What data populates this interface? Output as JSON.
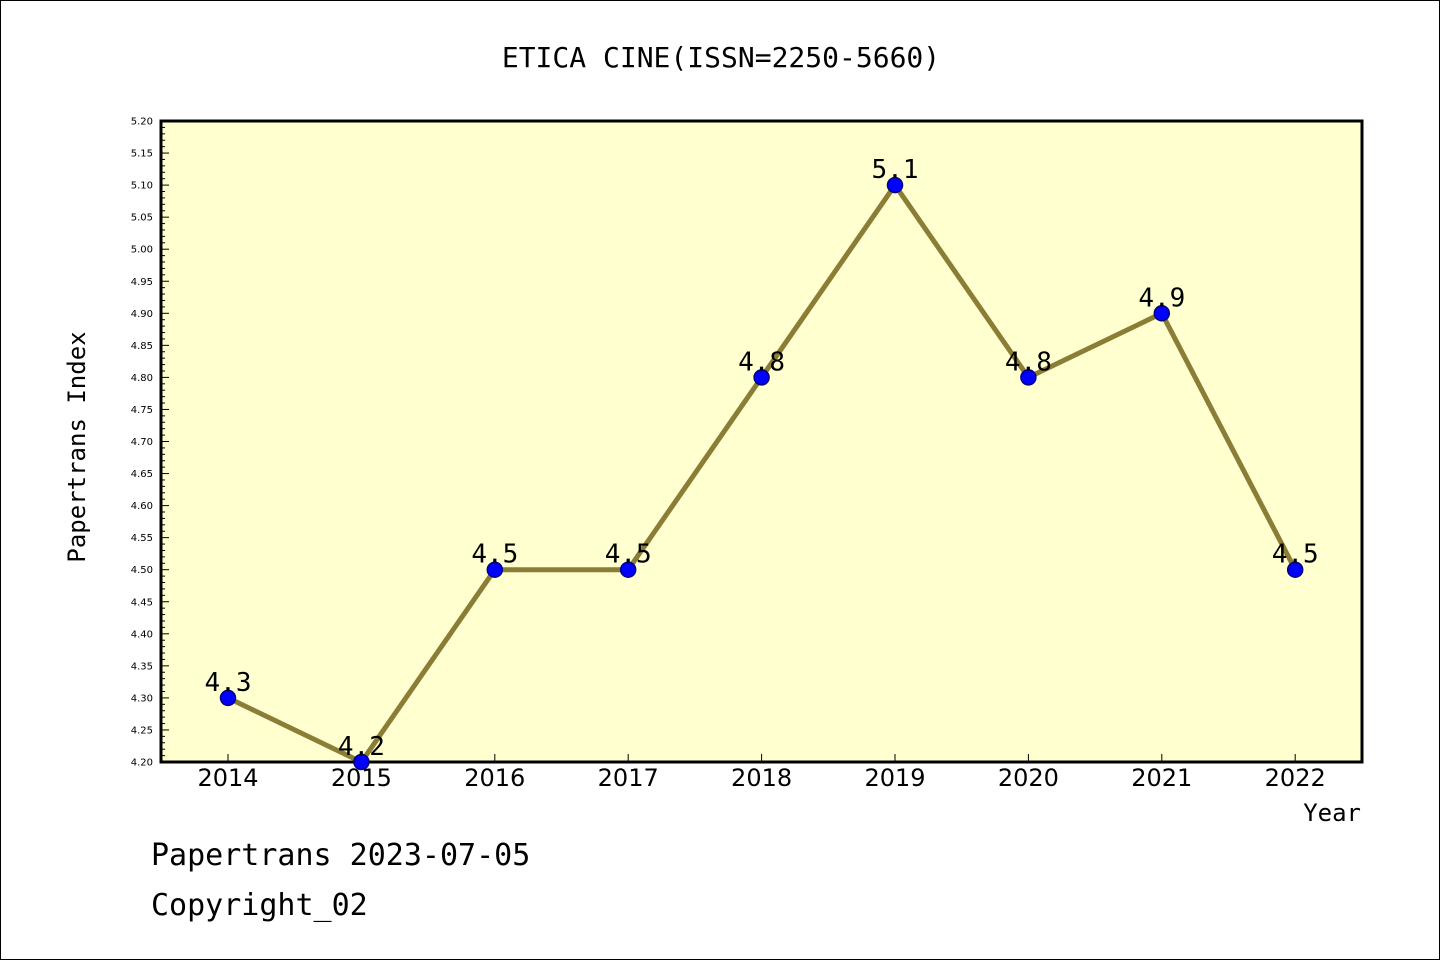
{
  "chart_data": {
    "type": "line",
    "title": "ETICA CINE(ISSN=2250-5660)",
    "xlabel": "Year",
    "ylabel": "Papertrans Index",
    "categories": [
      "2014",
      "2015",
      "2016",
      "2017",
      "2018",
      "2019",
      "2020",
      "2021",
      "2022"
    ],
    "series": [
      {
        "values": [
          4.3,
          4.2,
          4.5,
          4.5,
          4.8,
          5.1,
          4.8,
          4.9,
          4.5
        ],
        "labels": [
          "4.3",
          "4.2",
          "4.5",
          "4.5",
          "4.8",
          "5.1",
          "4.8",
          "4.9",
          "4.5"
        ]
      }
    ],
    "ylim": [
      4.2,
      5.2
    ],
    "yticks": [
      "4.20",
      "4.25",
      "4.30",
      "4.35",
      "4.40",
      "4.45",
      "4.50",
      "4.55",
      "4.60",
      "4.65",
      "4.70",
      "4.75",
      "4.80",
      "4.85",
      "4.90",
      "4.95",
      "5.00",
      "5.05",
      "5.10",
      "5.15",
      "5.20"
    ],
    "grid": false,
    "colors": {
      "plot_background": "#ffffd0",
      "line": "#8b7d35",
      "marker": "#0000ff",
      "marker_edge": "#000080"
    }
  },
  "footer": {
    "line1": "Papertrans 2023-07-05",
    "line2": "Copyright_02"
  }
}
